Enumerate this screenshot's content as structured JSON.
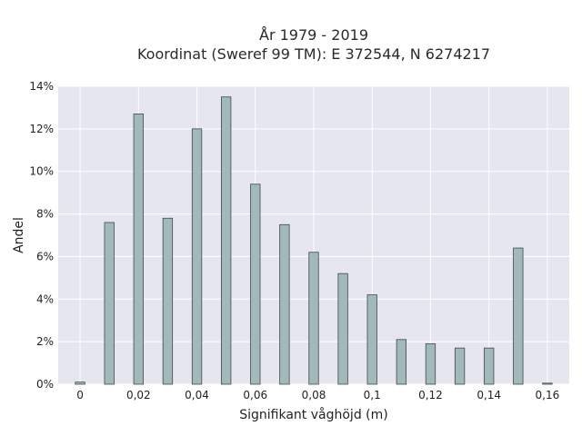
{
  "chart_data": {
    "type": "bar",
    "title_line1": "År 1979 - 2019",
    "title_line2": "Koordinat (Sweref 99 TM): E 372544, N 6274217",
    "xlabel": "Signifikant våghöjd (m)",
    "ylabel": "Andel",
    "x": [
      0,
      0.01,
      0.02,
      0.03,
      0.04,
      0.05,
      0.06,
      0.07,
      0.08,
      0.09,
      0.1,
      0.11,
      0.12,
      0.13,
      0.14,
      0.15,
      0.16
    ],
    "values": [
      0.1,
      7.6,
      12.7,
      7.8,
      12.0,
      13.5,
      9.4,
      7.5,
      6.2,
      5.2,
      4.2,
      2.1,
      1.9,
      1.7,
      1.7,
      6.4,
      0.05
    ],
    "xlim": [
      -0.0075,
      0.1675
    ],
    "ylim": [
      0,
      14
    ],
    "x_ticks": [
      {
        "value": 0,
        "label": "0"
      },
      {
        "value": 0.02,
        "label": "0,02"
      },
      {
        "value": 0.04,
        "label": "0,04"
      },
      {
        "value": 0.06,
        "label": "0,06"
      },
      {
        "value": 0.08,
        "label": "0,08"
      },
      {
        "value": 0.1,
        "label": "0,1"
      },
      {
        "value": 0.12,
        "label": "0,12"
      },
      {
        "value": 0.14,
        "label": "0,14"
      },
      {
        "value": 0.16,
        "label": "0,16"
      }
    ],
    "y_ticks": [
      {
        "value": 0,
        "label": "0%"
      },
      {
        "value": 2,
        "label": "2%"
      },
      {
        "value": 4,
        "label": "4%"
      },
      {
        "value": 6,
        "label": "6%"
      },
      {
        "value": 8,
        "label": "8%"
      },
      {
        "value": 10,
        "label": "10%"
      },
      {
        "value": 12,
        "label": "12%"
      },
      {
        "value": 14,
        "label": "14%"
      }
    ],
    "grid": true,
    "colors": {
      "bar_fill": "#a3b8b9",
      "bar_stroke": "#3f4a4a",
      "plot_background": "#e5e6ef",
      "grid": "#ffffff"
    }
  }
}
